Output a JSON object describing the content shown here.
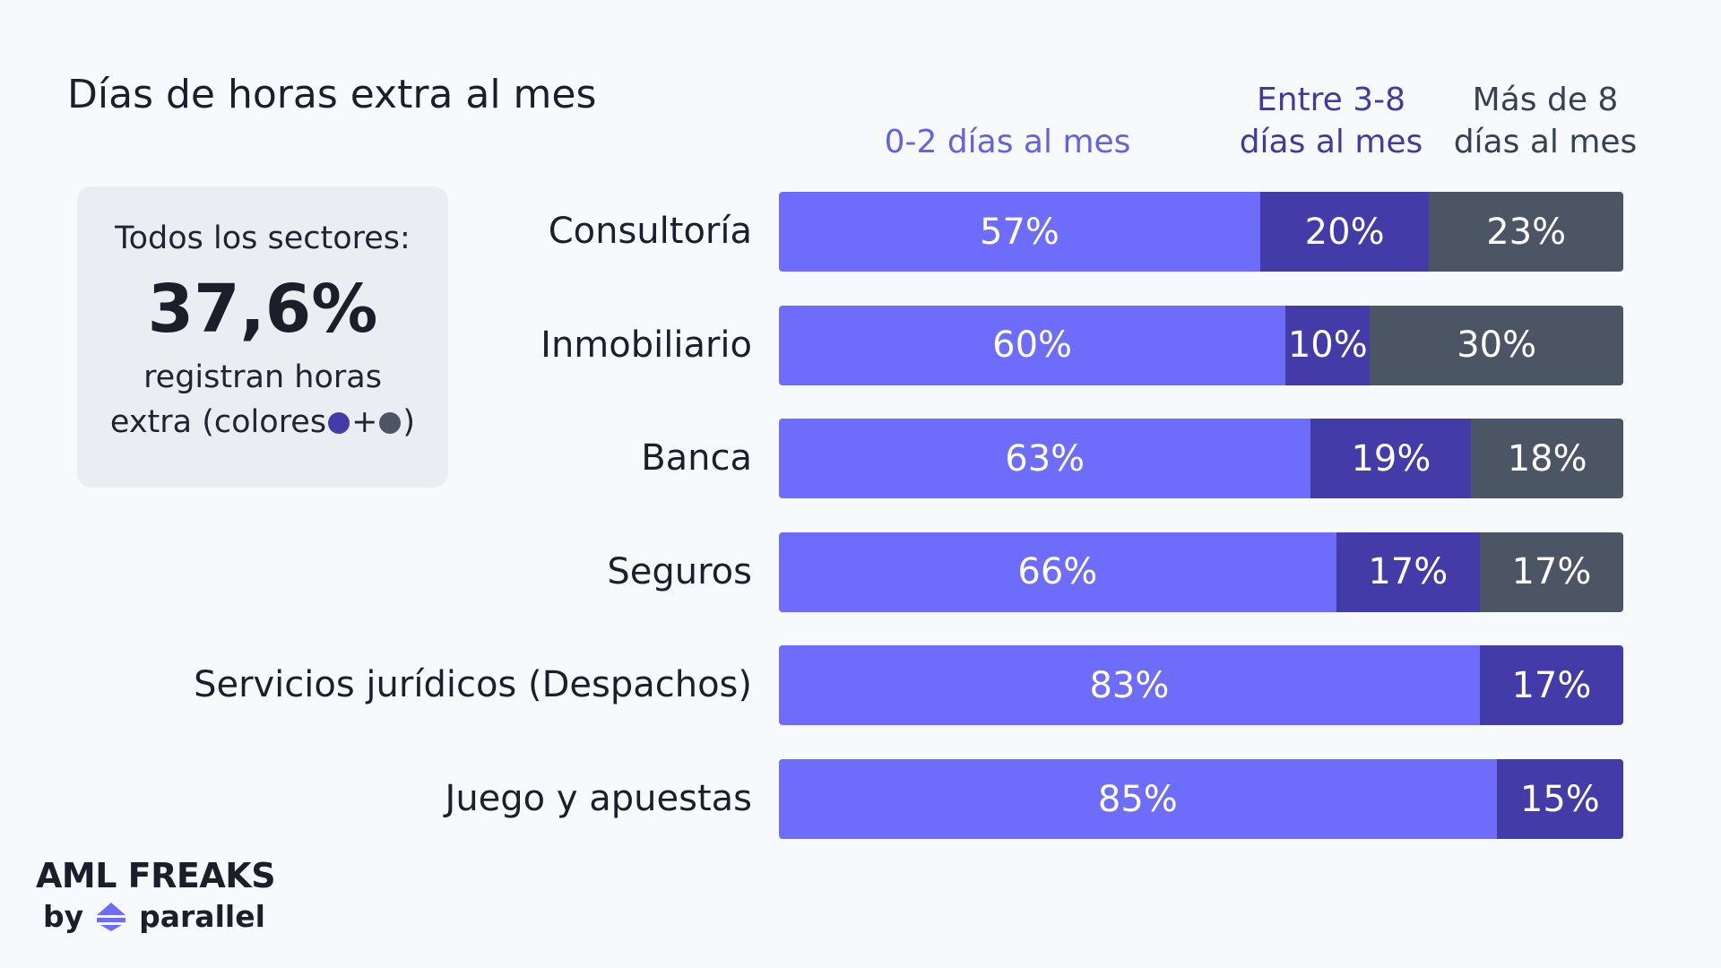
{
  "chart_data": {
    "type": "bar",
    "orientation": "horizontal",
    "stacked": true,
    "title": "Días de horas extra al mes",
    "categories": [
      "Consultoría",
      "Inmobiliario",
      "Banca",
      "Seguros",
      "Servicios jurídicos (Despachos)",
      "Juego y apuestas"
    ],
    "series": [
      {
        "name": "0-2 días al mes",
        "name_lines": [
          "0-2 días al mes"
        ],
        "color": "#6e6cfa",
        "label_color": "#6462dc",
        "values": [
          57,
          60,
          63,
          66,
          83,
          85
        ]
      },
      {
        "name": "Entre 3-8 días al mes",
        "name_lines": [
          "Entre 3-8",
          "días al mes"
        ],
        "color": "#433ca8",
        "label_color": "#413b9e",
        "values": [
          20,
          10,
          19,
          17,
          17,
          15
        ]
      },
      {
        "name": "Más de 8 días al mes",
        "name_lines": [
          "Más de 8",
          "días al mes"
        ],
        "color": "#4b5563",
        "label_color": "#374151",
        "values": [
          23,
          30,
          18,
          17,
          0,
          0
        ]
      }
    ],
    "value_suffix": "%",
    "xlim": [
      0,
      100
    ],
    "grid": false,
    "legend_placement": "top"
  },
  "summary": {
    "heading": "Todos los sectores:",
    "value": "37,6%",
    "line1": "registran horas",
    "line2_prefix": "extra (colores",
    "plus": "+",
    "close": ")",
    "dot_colors": [
      "#433ca8",
      "#4b5563"
    ]
  },
  "logo": {
    "name": "AML FREAKS",
    "by": "by",
    "brand": "parallel"
  }
}
